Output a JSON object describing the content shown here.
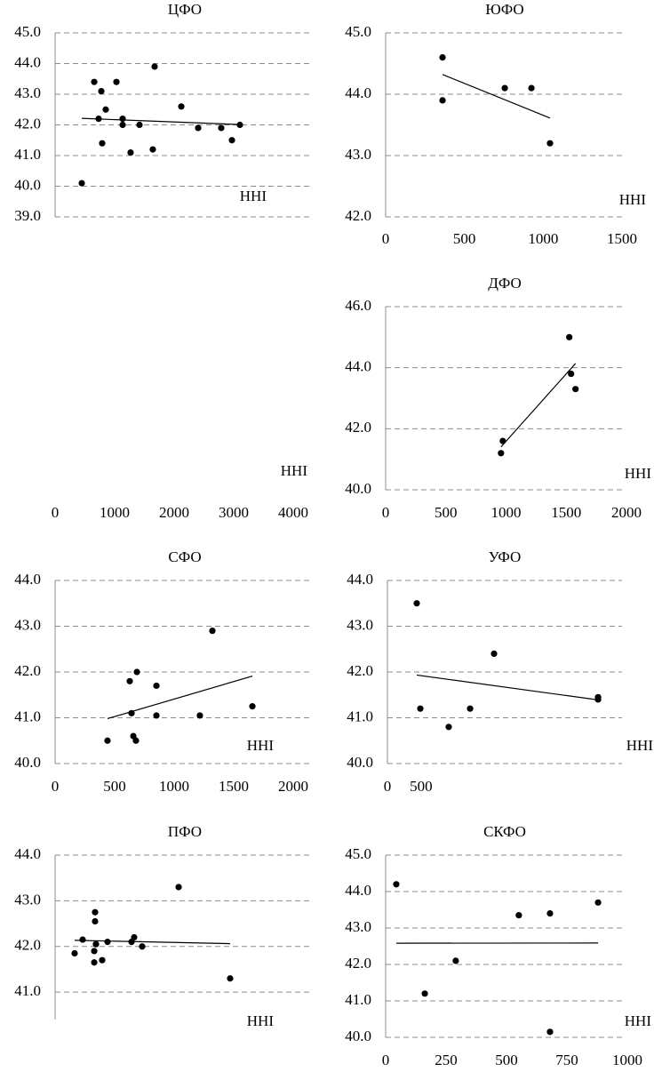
{
  "chart_data": [
    {
      "type": "scatter",
      "title": "ЦФО",
      "x_label": "HHI",
      "color": "#000000",
      "grid": true,
      "trendline": true,
      "x": [
        429,
        629,
        700,
        743,
        757,
        814,
        986,
        1086,
        1086,
        1214,
        1357,
        1571,
        1600,
        2029,
        2300,
        2671,
        2843,
        2971
      ],
      "values": [
        40.1,
        43.4,
        42.2,
        43.1,
        41.4,
        42.5,
        43.4,
        42.2,
        42.0,
        41.1,
        42.0,
        41.2,
        43.9,
        42.6,
        41.9,
        41.9,
        41.5,
        42.0
      ],
      "xlim": [
        0,
        4000
      ],
      "ylim": [
        39,
        45
      ],
      "yticks": [
        {
          "value": 39,
          "label": "39.0"
        },
        {
          "value": 40,
          "label": "40.0"
        },
        {
          "value": 41,
          "label": "41.0"
        },
        {
          "value": 42,
          "label": "42.0"
        },
        {
          "value": 43,
          "label": "43.0"
        },
        {
          "value": 44,
          "label": "44.0"
        },
        {
          "value": 45,
          "label": "45.0"
        }
      ]
    },
    {
      "type": "scatter",
      "title": "ЮФО",
      "x_label": "HHI",
      "color": "#000000",
      "grid": true,
      "trendline": true,
      "x": [
        361,
        361,
        756,
        925,
        1043
      ],
      "values": [
        44.6,
        43.9,
        44.1,
        44.1,
        43.2
      ],
      "xlim": [
        0,
        1500
      ],
      "xticks": [
        0,
        500,
        1000,
        1500
      ],
      "ylim": [
        42,
        45
      ],
      "yticks": [
        {
          "value": 42,
          "label": "42.0"
        },
        {
          "value": 43,
          "label": "43.0"
        },
        {
          "value": 44,
          "label": "44.0"
        },
        {
          "value": 45,
          "label": "45.0"
        }
      ]
    },
    {
      "type": "scatter",
      "x_label": "HHI",
      "color": "#000000",
      "grid": false,
      "trendline": false,
      "x": [],
      "values": [],
      "xlim": [
        0,
        4000
      ],
      "xticks": [
        0,
        1000,
        2000,
        3000,
        4000
      ]
    },
    {
      "type": "scatter",
      "title": "ДФО",
      "x_label": "HHI",
      "color": "#000000",
      "grid": true,
      "trendline": true,
      "x": [
        973,
        958,
        1525,
        1540,
        1577
      ],
      "values": [
        41.6,
        41.2,
        45.0,
        43.8,
        43.3
      ],
      "xlim": [
        0,
        2000
      ],
      "xticks": [
        0,
        500,
        1000,
        1500,
        2000
      ],
      "ylim": [
        40,
        46
      ],
      "yticks": [
        {
          "value": 40,
          "label": "40.0"
        },
        {
          "value": 42,
          "label": "42.0"
        },
        {
          "value": 44,
          "label": "44.0"
        },
        {
          "value": 46,
          "label": "46.0"
        }
      ]
    },
    {
      "type": "scatter",
      "title": "СФО",
      "x_label": "HHI",
      "color": "#000000",
      "grid": true,
      "trendline": true,
      "x": [
        440,
        627,
        687,
        642,
        657,
        679,
        851,
        851,
        1216,
        1321,
        1657
      ],
      "values": [
        40.5,
        41.8,
        42.0,
        41.1,
        40.6,
        40.5,
        41.7,
        41.05,
        41.05,
        42.9,
        41.25
      ],
      "xlim": [
        0,
        2000
      ],
      "xticks": [
        0,
        500,
        1000,
        1500,
        2000
      ],
      "ylim": [
        40,
        44
      ],
      "yticks": [
        {
          "value": 40,
          "label": "40.0"
        },
        {
          "value": 41,
          "label": "41.0"
        },
        {
          "value": 42,
          "label": "42.0"
        },
        {
          "value": 43,
          "label": "43.0"
        },
        {
          "value": 44,
          "label": "44.0"
        }
      ]
    },
    {
      "type": "scatter",
      "title": "УФО",
      "x_label": "HHI",
      "color": "#000000",
      "grid": true,
      "trendline": true,
      "x": [
        436,
        489,
        911,
        1229,
        1585,
        3131,
        3131
      ],
      "values": [
        43.5,
        41.2,
        40.8,
        41.2,
        42.4,
        41.45,
        41.4
      ],
      "xlim": [
        0,
        3500
      ],
      "xticks": [
        0,
        500
      ],
      "ylim": [
        40,
        44
      ],
      "yticks": [
        {
          "value": 40,
          "label": "40.0"
        },
        {
          "value": 41,
          "label": "41.0"
        },
        {
          "value": 42,
          "label": "42.0"
        },
        {
          "value": 43,
          "label": "43.0"
        },
        {
          "value": 44,
          "label": "44.0"
        }
      ]
    },
    {
      "type": "scatter",
      "title": "ПФО",
      "x_label": "HHI",
      "color": "#000000",
      "grid": true,
      "trendline": true,
      "x": [
        314,
        443,
        643,
        643,
        657,
        629,
        629,
        757,
        843,
        1229,
        1271,
        1400,
        1986,
        2814
      ],
      "values": [
        41.85,
        42.15,
        42.75,
        42.55,
        42.05,
        41.9,
        41.65,
        41.7,
        42.1,
        42.1,
        42.2,
        42.0,
        43.3,
        41.3
      ],
      "xlim": [
        0,
        4000
      ],
      "ylim": [
        40.4,
        44
      ],
      "yticks": [
        {
          "value": 41,
          "label": "41.0"
        },
        {
          "value": 42,
          "label": "42.0"
        },
        {
          "value": 43,
          "label": "43.0"
        },
        {
          "value": 44,
          "label": "44.0"
        }
      ]
    },
    {
      "type": "scatter",
      "title": "СКФО",
      "x_label": "HHI",
      "color": "#000000",
      "grid": true,
      "trendline": true,
      "x": [
        44,
        162,
        290,
        551,
        680,
        680,
        879
      ],
      "values": [
        44.2,
        41.2,
        42.1,
        43.35,
        43.4,
        40.15,
        43.7
      ],
      "xlim": [
        0,
        1000
      ],
      "xticks": [
        0,
        250,
        500,
        750,
        1000
      ],
      "ylim": [
        40,
        45
      ],
      "yticks": [
        {
          "value": 40,
          "label": "40.0"
        },
        {
          "value": 41,
          "label": "41.0"
        },
        {
          "value": 42,
          "label": "42.0"
        },
        {
          "value": 43,
          "label": "43.0"
        },
        {
          "value": 44,
          "label": "44.0"
        },
        {
          "value": 45,
          "label": "45.0"
        }
      ]
    }
  ]
}
